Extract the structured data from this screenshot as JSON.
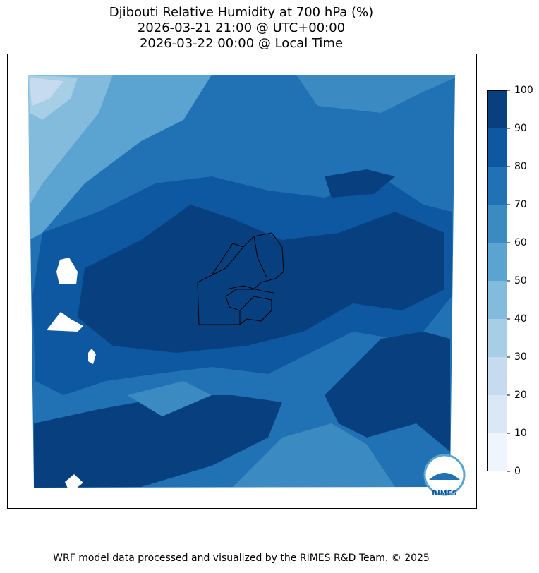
{
  "title": [
    "Djibouti Relative Humidity at 700 hPa (%)",
    "2026-03-21 21:00 @ UTC+00:00",
    "2026-03-22 00:00 @ Local Time"
  ],
  "colorbar": {
    "lim": [
      0,
      100
    ],
    "ticks": [
      0,
      10,
      20,
      30,
      40,
      50,
      60,
      70,
      80,
      90,
      100
    ],
    "colors": [
      "#eef5fc",
      "#dae8f6",
      "#c6dbef",
      "#a6cee4",
      "#82bbdb",
      "#5ba3d0",
      "#3b8bc2",
      "#2171b5",
      "#0d58a1",
      "#08407f"
    ]
  },
  "logo": "RIMES",
  "footer": "WRF model data processed and visualized by the RIMES R&D Team. © 2025"
}
